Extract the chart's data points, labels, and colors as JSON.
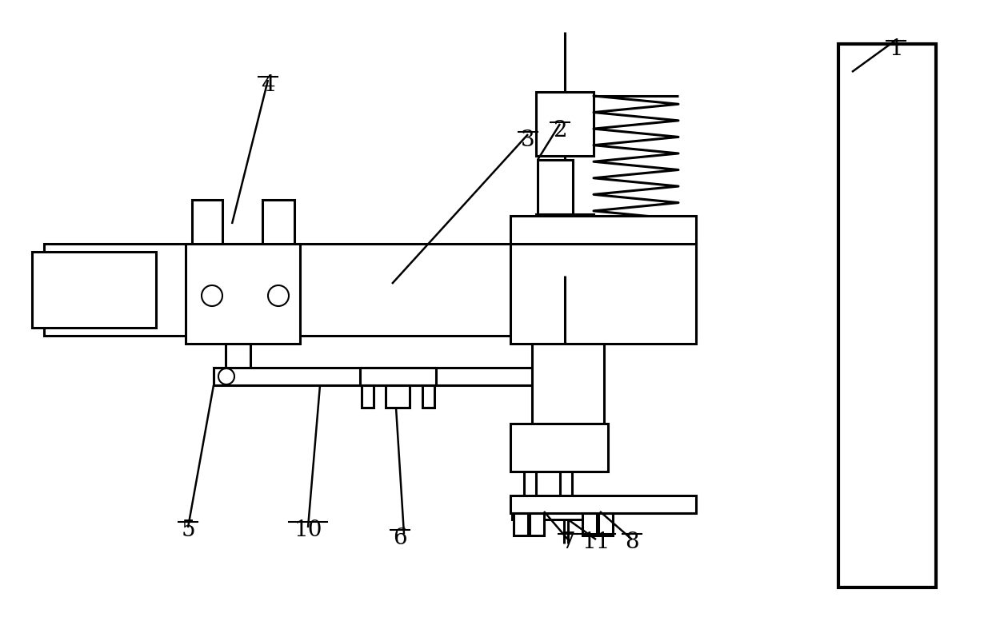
{
  "bg_color": "#ffffff",
  "lc": "#000000",
  "lw": 2.2,
  "lw_thin": 1.5,
  "lw_ann": 1.8,
  "fig_w": 12.4,
  "fig_h": 7.82
}
